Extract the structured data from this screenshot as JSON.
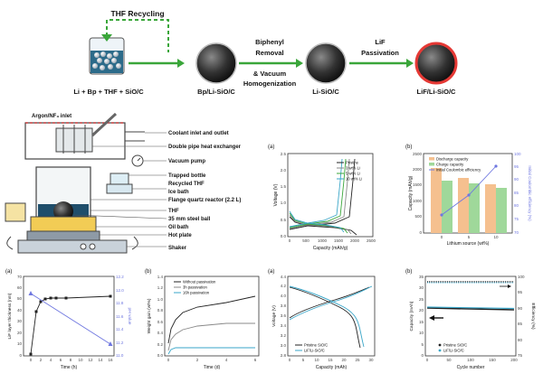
{
  "process": {
    "recycle_label": "THF Recycling",
    "reactants": "Li + Bp + THF + SiO/C",
    "step1_label": "Bp/Li-SiO/C",
    "arrow2_top_line1": "Biphenyl",
    "arrow2_top_line2": "Removal",
    "arrow2_bottom_line1": "& Vacuum",
    "arrow2_bottom_line2": "Homogenization",
    "step2_label": "Li-SiO/C",
    "arrow3_top_line1": "LiF",
    "arrow3_top_line2": "Passivation",
    "step3_label": "LiF/Li-SiO/C"
  },
  "reactor": {
    "gas_inlet": "Argon/NF₃ inlet",
    "labels": [
      "Coolant inlet and outlet",
      "Double pipe heat exchanger",
      "Vacuum pump",
      "Trapped bottle",
      "Recycled THF",
      "Ice bath",
      "Flange quartz reactor (2.2 L)",
      "THF",
      "35 mm steel ball",
      "Oil bath",
      "Hot plate",
      "Shaker"
    ]
  },
  "charts": {
    "voltage_profile": {
      "panel": "(a)",
      "xlabel": "Capacity (mAh/g)",
      "ylabel": "Voltage (V)",
      "xticks": [
        "0",
        "500",
        "1000",
        "1500",
        "2000",
        "2500"
      ],
      "yticks": [
        "0.0",
        "0.5",
        "1.0",
        "1.5",
        "2.0",
        "2.5"
      ],
      "legend": [
        "Pristine",
        "3 wt% Li",
        "5 wt% Li",
        "10 wt% Li"
      ],
      "colors": [
        "#222222",
        "#888888",
        "#3aa63a",
        "#3aa6c8"
      ]
    },
    "capacity_bars": {
      "panel": "(b)",
      "xlabel": "Lithium source (wt%)",
      "ylabel": "Capacity (mAh/g)",
      "y2label": "Initial Coulombic efficiency (%)",
      "categories": [
        "0",
        "5",
        "10"
      ],
      "yticks": [
        "0",
        "500",
        "1000",
        "1500",
        "2000",
        "2500"
      ],
      "y2ticks": [
        "70",
        "75",
        "80",
        "85",
        "90",
        "95",
        "100"
      ],
      "legend": [
        "Discharge capacity",
        "Charge capacity",
        "Initial Coulombic efficiency"
      ],
      "colors": [
        "#f5c08f",
        "#9fd89a",
        "#6f77e0"
      ]
    },
    "lif_thickness": {
      "panel": "(a)",
      "xlabel": "Time (h)",
      "ylabel": "LiF layer thickness (nm)",
      "y2label": "pH value",
      "xticks": [
        "0",
        "2",
        "4",
        "6",
        "8",
        "10",
        "12",
        "14",
        "16"
      ],
      "yticks": [
        "0",
        "10",
        "20",
        "30",
        "40",
        "50",
        "60",
        "70"
      ],
      "y2ticks": [
        "11.0",
        "11.2",
        "11.4",
        "11.6",
        "11.8",
        "12.0",
        "12.2"
      ]
    },
    "weight_gain": {
      "panel": "(b)",
      "xlabel": "Time (d)",
      "ylabel": "Weight gain (wt%)",
      "xticks": [
        "0",
        "2",
        "4",
        "6"
      ],
      "yticks": [
        "0.0",
        "0.2",
        "0.4",
        "0.6",
        "0.8",
        "1.0",
        "1.2",
        "1.4"
      ],
      "legend": [
        "Without passivation",
        "3h passivation",
        "16h passivation"
      ],
      "colors": [
        "#222222",
        "#888888",
        "#3aa6c8"
      ]
    },
    "full_cell_voltage": {
      "panel": "(a)",
      "xlabel": "Capacity (mAh)",
      "ylabel": "Voltage (V)",
      "xticks": [
        "0",
        "5",
        "10",
        "15",
        "20",
        "25",
        "30"
      ],
      "yticks": [
        "2.8",
        "3.0",
        "3.2",
        "3.4",
        "3.6",
        "3.8",
        "4.0",
        "4.2",
        "4.4"
      ],
      "legend": [
        "Pristine SiO/C",
        "LiF/Li-SiO/C"
      ],
      "colors": [
        "#222222",
        "#3aa6c8"
      ]
    },
    "cycling": {
      "panel": "(b)",
      "xlabel": "Cycle number",
      "ylabel": "Capacity (mAh)",
      "y2label": "Efficiency (%)",
      "xticks": [
        "0",
        "50",
        "100",
        "150",
        "200"
      ],
      "yticks": [
        "0",
        "5",
        "10",
        "15",
        "20",
        "25",
        "30",
        "35"
      ],
      "y2ticks": [
        "75",
        "80",
        "85",
        "90",
        "95",
        "100"
      ],
      "legend": [
        "Pristine SiO/C",
        "LiF/Li-SiO/C"
      ],
      "colors": [
        "#222222",
        "#3aa6c8"
      ]
    }
  }
}
